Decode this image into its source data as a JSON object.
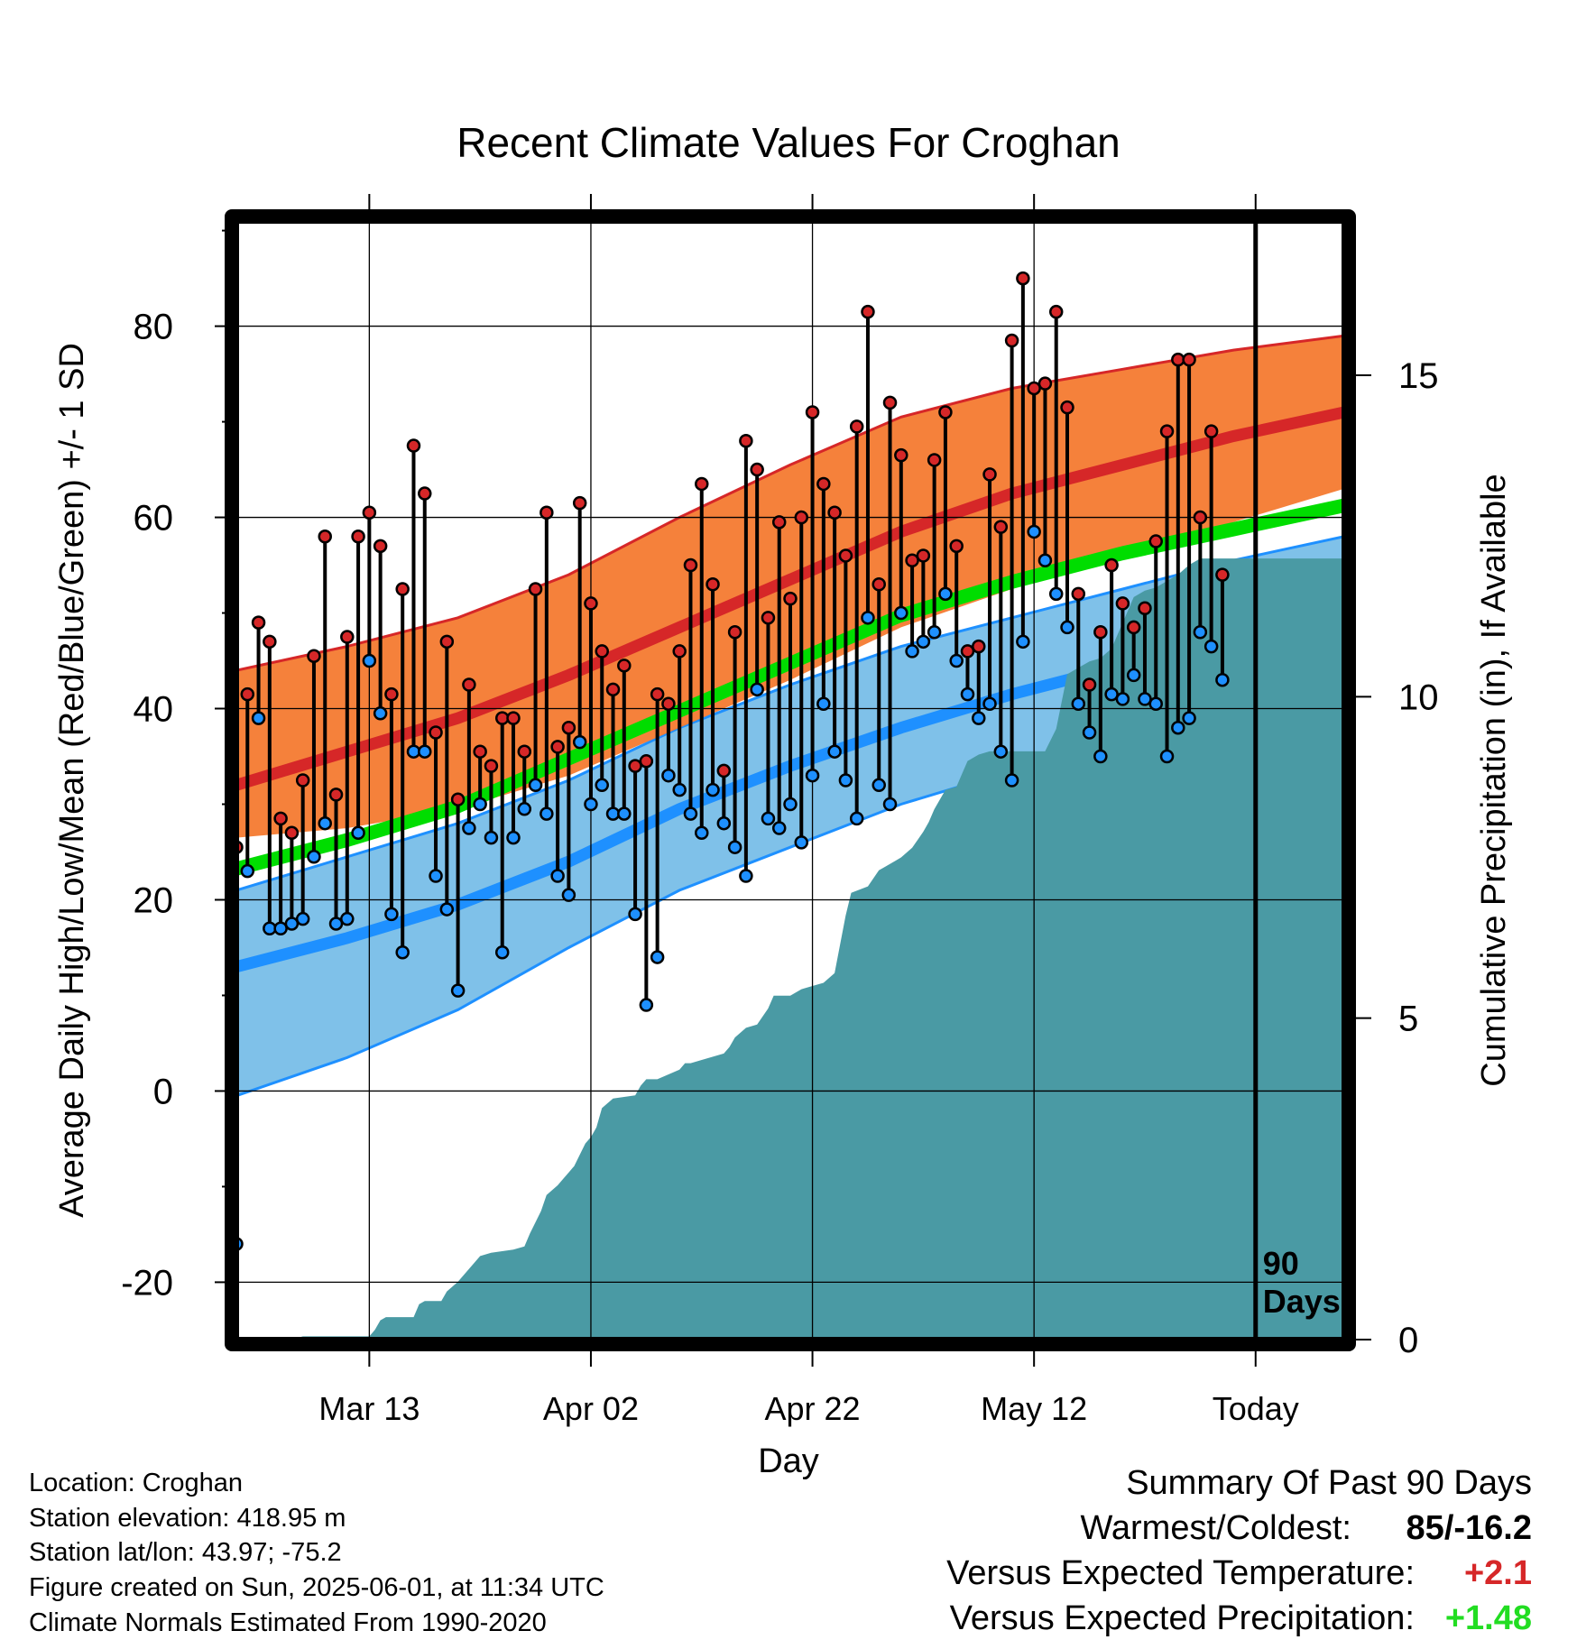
{
  "chart_data": {
    "type": "line",
    "title": "Recent Climate Values For Croghan",
    "xlabel": "Day",
    "ylabel": "Average Daily High/Low/Mean (Red/Blue/Green) +/- 1 SD",
    "y2label": "Cumulative Precipitation (in), If Available",
    "xlim": [
      0,
      100
    ],
    "ylim": [
      -26,
      91
    ],
    "y2lim": [
      0,
      17.4
    ],
    "x_tick_positions": [
      12,
      32,
      52,
      72,
      92
    ],
    "x_tick_labels": [
      "Mar 13",
      "Apr 02",
      "Apr 22",
      "May 12",
      "Today"
    ],
    "y_ticks": [
      -20,
      0,
      20,
      40,
      60,
      80
    ],
    "y2_ticks": [
      0,
      5,
      10,
      15
    ],
    "grid": true,
    "today_marker": {
      "x": 92,
      "label_line1": "90",
      "label_line2": "Days"
    },
    "colors": {
      "high_band": "#f47a30",
      "high_line": "#d62728",
      "low_band": "#7fc1e9",
      "low_line": "#1e90ff",
      "mean_band": "#00dd00",
      "precip": "#4a9aa4",
      "high_marker": "#d62728",
      "low_marker": "#1e90ff"
    },
    "normal_high": {
      "x": [
        0,
        10,
        20,
        30,
        40,
        50,
        60,
        70,
        80,
        90,
        100
      ],
      "mean": [
        32,
        35.5,
        39,
        43.5,
        48.5,
        53.5,
        58.5,
        62.5,
        65.5,
        68.5,
        71
      ],
      "upper": [
        44,
        46.5,
        49.5,
        54,
        60,
        65.5,
        70.5,
        73.5,
        75.5,
        77.5,
        79
      ],
      "lower": [
        26.5,
        27.5,
        29.5,
        33,
        38,
        43,
        48.5,
        52.5,
        56,
        59.5,
        63
      ]
    },
    "normal_mean": {
      "x": [
        0,
        10,
        20,
        30,
        40,
        50,
        60,
        70,
        80,
        90,
        100
      ],
      "upper": [
        24,
        27,
        30.5,
        35.5,
        40.5,
        45.5,
        50.5,
        54,
        57,
        59.5,
        62
      ],
      "lower": [
        22.5,
        25.5,
        29,
        34,
        39,
        44,
        49,
        52.5,
        55.5,
        58,
        60.5
      ]
    },
    "normal_low": {
      "x": [
        0,
        10,
        20,
        30,
        40,
        50,
        60,
        70,
        80,
        90,
        100
      ],
      "mean": [
        13,
        16,
        19.5,
        24,
        29.5,
        34,
        38,
        41.5,
        44.5,
        47.5,
        51
      ],
      "upper": [
        21,
        24.5,
        28,
        32.5,
        38,
        42.5,
        46.5,
        49.5,
        52.5,
        55.5,
        58
      ],
      "lower": [
        -0.5,
        3.5,
        8.5,
        15,
        21,
        25.5,
        30,
        33.5,
        36.5,
        39.5,
        44
      ]
    },
    "daily": {
      "x": [
        0,
        1,
        2,
        3,
        4,
        5,
        6,
        7,
        8,
        9,
        10,
        11,
        12,
        13,
        14,
        15,
        16,
        17,
        18,
        19,
        20,
        21,
        22,
        23,
        24,
        25,
        26,
        27,
        28,
        29,
        30,
        31,
        32,
        33,
        34,
        35,
        36,
        37,
        38,
        39,
        40,
        41,
        42,
        43,
        44,
        45,
        46,
        47,
        48,
        49,
        50,
        51,
        52,
        53,
        54,
        55,
        56,
        57,
        58,
        59,
        60,
        61,
        62,
        63,
        64,
        65,
        66,
        67,
        68,
        69,
        70,
        71,
        72,
        73,
        74,
        75,
        76,
        77,
        78,
        79,
        80,
        81,
        82,
        83,
        84,
        85,
        86,
        87,
        88,
        89
      ],
      "high": [
        25.5,
        41.5,
        49,
        47,
        28.5,
        27,
        32.5,
        45.5,
        58,
        31,
        47.5,
        58,
        60.5,
        57,
        41.5,
        52.5,
        67.5,
        62.5,
        37.5,
        47,
        30.5,
        42.5,
        35.5,
        34,
        39,
        39,
        35.5,
        52.5,
        60.5,
        36,
        38,
        61.5,
        51,
        46,
        42,
        44.5,
        34,
        34.5,
        41.5,
        40.5,
        46,
        55,
        63.5,
        53,
        33.5,
        48,
        68,
        65,
        49.5,
        59.5,
        51.5,
        60,
        71,
        63.5,
        60.5,
        56,
        69.5,
        81.5,
        53,
        72,
        66.5,
        55.5,
        56,
        66,
        71,
        57,
        46,
        46.5,
        64.5,
        59,
        78.5,
        85,
        73.5,
        74,
        81.5,
        71.5,
        52,
        42.5,
        48,
        55,
        51,
        48.5,
        50.5,
        57.5,
        69,
        76.5,
        76.5,
        60,
        69,
        54
      ],
      "low": [
        -16,
        23,
        39,
        17,
        17,
        17.5,
        18,
        24.5,
        28,
        17.5,
        18,
        27,
        45,
        39.5,
        18.5,
        14.5,
        35.5,
        35.5,
        22.5,
        19,
        10.5,
        27.5,
        30,
        26.5,
        14.5,
        26.5,
        29.5,
        32,
        29,
        22.5,
        20.5,
        36.5,
        30,
        32,
        29,
        29,
        18.5,
        9,
        14,
        33,
        31.5,
        29,
        27,
        31.5,
        28,
        25.5,
        22.5,
        42,
        28.5,
        27.5,
        30,
        26,
        33,
        40.5,
        35.5,
        32.5,
        28.5,
        49.5,
        32,
        30,
        50,
        46,
        47,
        48,
        52,
        45,
        41.5,
        39,
        40.5,
        35.5,
        32.5,
        47,
        58.5,
        55.5,
        52,
        48.5,
        40.5,
        37.5,
        35,
        41.5,
        41,
        43.5,
        41,
        40.5,
        35,
        38,
        39,
        48,
        46.5,
        43
      ]
    },
    "precip": {
      "x": [
        0,
        5,
        6,
        12,
        12.5,
        13,
        13.5,
        14.5,
        16,
        16.5,
        17,
        18,
        18.5,
        19,
        20,
        21,
        22,
        23,
        25,
        26,
        26.5,
        27.5,
        28,
        29,
        29.5,
        30,
        30.5,
        31.5,
        32,
        32.5,
        33,
        34,
        36,
        36.5,
        37,
        38,
        40,
        40.5,
        41,
        42,
        44,
        44.5,
        45,
        46,
        47,
        48,
        48.5,
        50,
        51,
        52,
        53,
        54,
        55,
        55.5,
        57,
        58,
        58.5,
        59.5,
        60,
        61,
        62,
        62.5,
        63,
        64,
        65,
        65.5,
        66,
        67,
        68,
        69,
        70,
        71,
        73,
        74,
        75,
        76,
        77,
        78,
        79,
        80,
        81,
        82,
        83,
        84,
        85,
        86,
        87,
        88,
        89,
        90,
        92,
        100
      ],
      "cum": [
        0,
        0,
        0.05,
        0.05,
        0.15,
        0.3,
        0.35,
        0.35,
        0.35,
        0.55,
        0.6,
        0.6,
        0.6,
        0.75,
        0.9,
        1.1,
        1.3,
        1.35,
        1.4,
        1.45,
        1.65,
        2.0,
        2.25,
        2.4,
        2.5,
        2.6,
        2.7,
        3.05,
        3.15,
        3.3,
        3.6,
        3.75,
        3.8,
        3.95,
        4.05,
        4.05,
        4.2,
        4.3,
        4.3,
        4.35,
        4.45,
        4.55,
        4.7,
        4.85,
        4.9,
        5.15,
        5.35,
        5.35,
        5.45,
        5.5,
        5.55,
        5.7,
        6.6,
        6.95,
        7.05,
        7.3,
        7.35,
        7.45,
        7.5,
        7.65,
        7.9,
        8.05,
        8.25,
        8.55,
        8.6,
        8.8,
        9.0,
        9.1,
        9.15,
        9.15,
        9.15,
        9.15,
        9.15,
        9.5,
        10.35,
        10.45,
        10.55,
        10.6,
        10.75,
        11.15,
        11.55,
        11.65,
        11.7,
        11.8,
        11.9,
        12.05,
        12.15,
        12.15,
        12.15,
        12.15,
        12.15,
        12.15
      ]
    }
  },
  "footer": {
    "location": "Location: Croghan",
    "elevation": "Station elevation: 418.95 m",
    "latlon": "Station lat/lon: 43.97; -75.2",
    "created": "Figure created on Sun, 2025-06-01, at 11:34 UTC",
    "normals": "Climate Normals Estimated From 1990-2020"
  },
  "summary": {
    "heading": "Summary Of Past 90 Days",
    "warmest_label": "Warmest/Coldest:",
    "warmest_value": "85/-16.2",
    "temp_label": "Versus Expected Temperature:",
    "temp_value": "+2.1",
    "temp_color": "#d62728",
    "precip_label": "Versus Expected Precipitation:",
    "precip_value": "+1.48",
    "precip_color": "#22dd22"
  }
}
